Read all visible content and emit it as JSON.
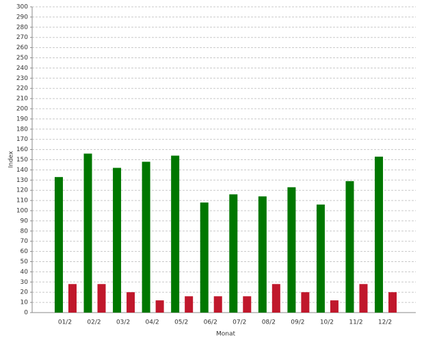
{
  "chart_data": {
    "type": "bar",
    "x_label": "Monat",
    "y_label": "Index",
    "categories": [
      "01/2",
      "02/2",
      "03/2",
      "04/2",
      "05/2",
      "06/2",
      "07/2",
      "08/2",
      "09/2",
      "10/2",
      "11/2",
      "12/2"
    ],
    "series": [
      {
        "color": "#007700",
        "values": [
          133,
          156,
          142,
          148,
          154,
          108,
          116,
          114,
          123,
          106,
          129,
          153
        ]
      },
      {
        "color": "#c0182c",
        "values": [
          28,
          28,
          20,
          12,
          16,
          16,
          16,
          28,
          20,
          12,
          28,
          20
        ]
      }
    ],
    "ylim": [
      0,
      300
    ],
    "yticks": [
      0,
      10,
      20,
      30,
      40,
      50,
      60,
      70,
      80,
      90,
      100,
      110,
      120,
      130,
      140,
      150,
      160,
      170,
      180,
      190,
      200,
      210,
      220,
      230,
      240,
      250,
      260,
      270,
      280,
      290,
      300
    ],
    "grid": true
  }
}
